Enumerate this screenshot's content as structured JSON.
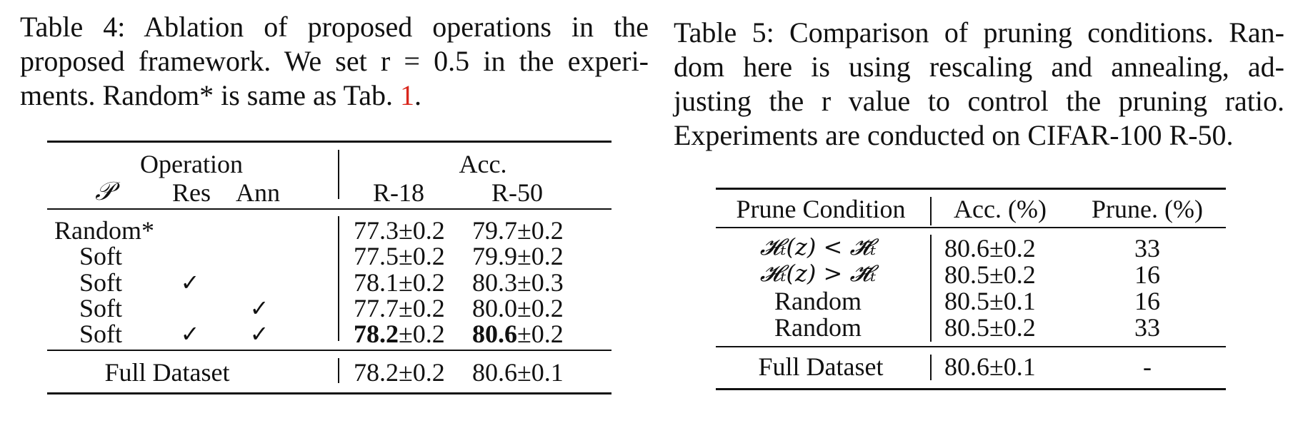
{
  "table4": {
    "caption_lines": [
      "Table 4:  Ablation of proposed operations in the",
      "proposed framework. We set r = 0.5 in the experi-",
      "ments. Random* is same as Tab. "
    ],
    "caption_ref": "1",
    "caption_end": ".",
    "header_group_left": "Operation",
    "header_group_right": "Acc.",
    "columns": [
      "𝒫",
      "Res",
      "Ann",
      "R-18",
      "R-50"
    ],
    "check": "✓",
    "rows": [
      {
        "p": "Random*",
        "res": "",
        "ann": "",
        "r18": "77.3±0.2",
        "r50": "79.7±0.2"
      },
      {
        "p": "Soft",
        "res": "",
        "ann": "",
        "r18": "77.5±0.2",
        "r50": "79.9±0.2"
      },
      {
        "p": "Soft",
        "res": "✓",
        "ann": "",
        "r18": "78.1±0.2",
        "r50": "80.3±0.3"
      },
      {
        "p": "Soft",
        "res": "",
        "ann": "✓",
        "r18": "77.7±0.2",
        "r50": "80.0±0.2"
      },
      {
        "p": "Soft",
        "res": "✓",
        "ann": "✓",
        "r18_bold": "78.2",
        "r18_rest": "±0.2",
        "r50_bold": "80.6",
        "r50_rest": "±0.2"
      }
    ],
    "footer": {
      "label": "Full Dataset",
      "r18": "78.2±0.2",
      "r50": "80.6±0.1"
    }
  },
  "table5": {
    "caption_lines": [
      "Table 5: Comparison of pruning conditions. Ran-",
      "dom here is using rescaling and annealing, ad-",
      "justing the r value to control the pruning ratio.",
      "Experiments are conducted on CIFAR-100 R-50."
    ],
    "columns": [
      "Prune Condition",
      "Acc. (%)",
      "Prune. (%)"
    ],
    "rows": [
      {
        "cond": "𝓗ₜ(z) < 𝓗̄ₜ",
        "acc": "80.6±0.2",
        "prune": "33"
      },
      {
        "cond": "𝓗ₜ(z) > 𝓗̄ₜ",
        "acc": "80.5±0.2",
        "prune": "16"
      },
      {
        "cond": "Random",
        "acc": "80.5±0.1",
        "prune": "16"
      },
      {
        "cond": "Random",
        "acc": "80.5±0.2",
        "prune": "33"
      }
    ],
    "footer": {
      "label": "Full Dataset",
      "acc": "80.6±0.1",
      "prune": "-"
    }
  }
}
